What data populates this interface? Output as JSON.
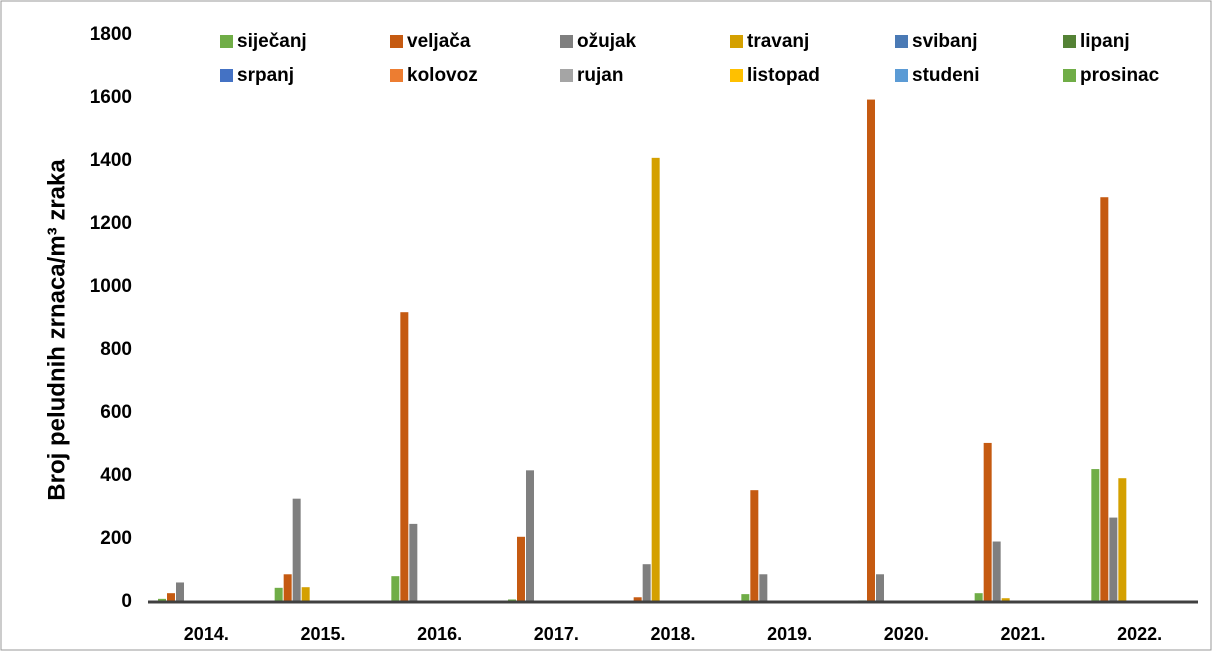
{
  "chart_data": {
    "type": "bar",
    "ylabel": "Broj peludnih zrnaca/m³ zraka",
    "categories": [
      "2014.",
      "2015.",
      "2016.",
      "2017.",
      "2018.",
      "2019.",
      "2020.",
      "2021.",
      "2022."
    ],
    "series": [
      {
        "name": "siječanj",
        "color": "#70ad47",
        "values": [
          10,
          45,
          82,
          8,
          0,
          25,
          5,
          28,
          422
        ]
      },
      {
        "name": "veljača",
        "color": "#c55a11",
        "values": [
          28,
          88,
          920,
          207,
          15,
          355,
          1595,
          505,
          1285
        ]
      },
      {
        "name": "ožujak",
        "color": "#7f7f7f",
        "values": [
          62,
          328,
          248,
          418,
          120,
          88,
          88,
          192,
          268
        ]
      },
      {
        "name": "travanj",
        "color": "#d4a000",
        "values": [
          0,
          47,
          0,
          0,
          1410,
          0,
          0,
          12,
          393
        ]
      },
      {
        "name": "svibanj",
        "color": "#4a7ab5",
        "values": [
          0,
          0,
          0,
          0,
          0,
          0,
          0,
          0,
          0
        ]
      },
      {
        "name": "lipanj",
        "color": "#548235",
        "values": [
          0,
          0,
          0,
          0,
          0,
          0,
          0,
          0,
          0
        ]
      },
      {
        "name": "srpanj",
        "color": "#4472c4",
        "values": [
          0,
          0,
          0,
          0,
          0,
          0,
          0,
          0,
          0
        ]
      },
      {
        "name": "kolovoz",
        "color": "#ed7d31",
        "values": [
          0,
          0,
          0,
          0,
          0,
          0,
          0,
          0,
          0
        ]
      },
      {
        "name": "rujan",
        "color": "#a5a5a5",
        "values": [
          0,
          0,
          0,
          0,
          0,
          0,
          0,
          0,
          0
        ]
      },
      {
        "name": "listopad",
        "color": "#ffc000",
        "values": [
          0,
          0,
          0,
          0,
          0,
          0,
          0,
          0,
          0
        ]
      },
      {
        "name": "studeni",
        "color": "#5b9bd5",
        "values": [
          0,
          0,
          0,
          0,
          0,
          0,
          0,
          0,
          0
        ]
      },
      {
        "name": "prosinac",
        "color": "#70ad47",
        "values": [
          0,
          0,
          0,
          0,
          0,
          0,
          0,
          0,
          0
        ]
      }
    ],
    "ylim": [
      0,
      1800
    ],
    "yticks": [
      0,
      200,
      400,
      600,
      800,
      1000,
      1200,
      1400,
      1600,
      1800
    ],
    "grid": false,
    "legend": "top"
  }
}
